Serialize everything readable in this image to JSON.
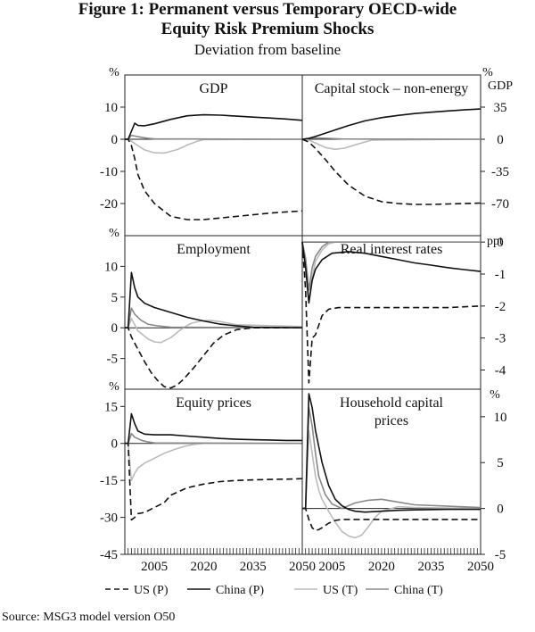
{
  "title_line1": "Figure 1: Permanent versus Temporary OECD-wide",
  "title_line2": "Equity Risk Premium Shocks",
  "subtitle": "Deviation from baseline",
  "source": "Source: MSG3 model version O50",
  "legend": [
    {
      "label": "US (P)",
      "color": "#111111",
      "dash": "7,4",
      "width": 1.6
    },
    {
      "label": "China (P)",
      "color": "#111111",
      "dash": "",
      "width": 1.6
    },
    {
      "label": "US (T)",
      "color": "#bbbbbb",
      "dash": "",
      "width": 1.6
    },
    {
      "label": "China (T)",
      "color": "#888888",
      "dash": "",
      "width": 1.6
    }
  ],
  "x_axis": {
    "range": [
      1996,
      2050
    ],
    "tick_labels": [
      "2005",
      "2020",
      "2035",
      "2050"
    ],
    "tick_values": [
      2005,
      2020,
      2035,
      2050
    ]
  },
  "chart_data": [
    {
      "type": "line",
      "title": "GDP",
      "axis_side": "left",
      "unit": "%",
      "ylim": [
        -30,
        20
      ],
      "yticks": [
        10,
        0,
        -10,
        -20
      ],
      "series": [
        {
          "name": "US (P)",
          "x": [
            1996,
            1997,
            1998,
            1999,
            2000,
            2002,
            2005,
            2010,
            2015,
            2020,
            2025,
            2030,
            2035,
            2040,
            2045,
            2050
          ],
          "y": [
            0,
            0,
            -2,
            -6,
            -11,
            -16,
            -20,
            -24,
            -25,
            -25,
            -24.5,
            -24,
            -23.5,
            -23,
            -22.6,
            -22.3
          ]
        },
        {
          "name": "China (P)",
          "x": [
            1996,
            1997,
            1998,
            1999,
            2000,
            2002,
            2005,
            2010,
            2015,
            2020,
            2025,
            2030,
            2035,
            2040,
            2045,
            2050
          ],
          "y": [
            0,
            0,
            2.5,
            5,
            4.3,
            4.2,
            4.8,
            6.2,
            7.3,
            7.6,
            7.5,
            7.2,
            6.9,
            6.6,
            6.3,
            5.9
          ]
        },
        {
          "name": "US (T)",
          "x": [
            1996,
            1997,
            1998,
            2000,
            2002,
            2005,
            2008,
            2012,
            2015,
            2018,
            2020,
            2050
          ],
          "y": [
            0,
            0,
            -0.6,
            -2,
            -3.3,
            -4.2,
            -4.3,
            -3.2,
            -1.8,
            -0.6,
            -0.1,
            0
          ]
        },
        {
          "name": "China (T)",
          "x": [
            1996,
            1997,
            1998,
            1999,
            2001,
            2003,
            2005,
            2050
          ],
          "y": [
            0,
            0,
            1.2,
            1,
            0.6,
            0.3,
            0.1,
            0
          ]
        }
      ]
    },
    {
      "type": "line",
      "title": "Capital stock – non-energy",
      "axis_side": "right",
      "unit": "%",
      "unit2": "GDP",
      "ylim": [
        -105,
        70
      ],
      "yticks": [
        35,
        0,
        -35,
        -70
      ],
      "series": [
        {
          "name": "US (P)",
          "x": [
            1996,
            1998,
            2000,
            2003,
            2006,
            2010,
            2015,
            2020,
            2025,
            2030,
            2035,
            2040,
            2045,
            2050
          ],
          "y": [
            0,
            -3,
            -10,
            -22,
            -35,
            -50,
            -62,
            -68,
            -70,
            -71,
            -71,
            -70.5,
            -70,
            -69.5
          ]
        },
        {
          "name": "China (P)",
          "x": [
            1996,
            1998,
            2000,
            2005,
            2010,
            2015,
            2020,
            2025,
            2030,
            2035,
            2040,
            2045,
            2050
          ],
          "y": [
            0,
            1,
            3,
            9,
            15,
            20,
            23.5,
            26,
            28,
            29.5,
            30.8,
            32,
            33
          ]
        },
        {
          "name": "US (T)",
          "x": [
            1996,
            1998,
            2000,
            2003,
            2006,
            2009,
            2012,
            2015,
            2017,
            2050
          ],
          "y": [
            0,
            -1,
            -4,
            -9,
            -11,
            -9.5,
            -6,
            -3,
            -1,
            0
          ]
        },
        {
          "name": "China (T)",
          "x": [
            1996,
            1998,
            2000,
            2004,
            2008,
            2050
          ],
          "y": [
            0,
            1,
            1.5,
            1,
            0.3,
            0
          ]
        }
      ]
    },
    {
      "type": "line",
      "title": "Employment",
      "axis_side": "left",
      "unit": "%",
      "ylim": [
        -10,
        15
      ],
      "yticks": [
        10,
        5,
        0,
        -5
      ],
      "series": [
        {
          "name": "US (P)",
          "x": [
            1996,
            1997,
            1998,
            2000,
            2002,
            2004,
            2006,
            2008,
            2010,
            2012,
            2014,
            2017,
            2020,
            2023,
            2026,
            2030,
            2035,
            2050
          ],
          "y": [
            0,
            0,
            -1.5,
            -3.5,
            -5.5,
            -7.3,
            -8.6,
            -9.6,
            -9.8,
            -9.3,
            -8.3,
            -6.5,
            -4.5,
            -2.5,
            -1.2,
            -0.3,
            0,
            0
          ]
        },
        {
          "name": "China (P)",
          "x": [
            1996,
            1997,
            1998,
            1999,
            2000,
            2002,
            2005,
            2010,
            2015,
            2020,
            2025,
            2030,
            2035,
            2050
          ],
          "y": [
            0,
            0,
            9,
            6.5,
            5,
            4,
            3.3,
            2.5,
            1.7,
            1.1,
            0.6,
            0.3,
            0.1,
            0
          ]
        },
        {
          "name": "US (T)",
          "x": [
            1996,
            1997,
            1998,
            2000,
            2003,
            2005,
            2007,
            2010,
            2013,
            2016,
            2019,
            2022,
            2025,
            2030,
            2050
          ],
          "y": [
            0,
            0,
            1.5,
            -0.5,
            -1.8,
            -2.3,
            -2.4,
            -1.6,
            -0.3,
            0.7,
            1.1,
            1.2,
            1,
            0.5,
            0.2
          ]
        },
        {
          "name": "China (T)",
          "x": [
            1996,
            1997,
            1998,
            1999,
            2001,
            2003,
            2006,
            2010,
            2050
          ],
          "y": [
            0,
            0,
            3.2,
            2.2,
            1.2,
            0.6,
            0.3,
            0.1,
            0
          ]
        }
      ]
    },
    {
      "type": "line",
      "title": "Real interest rates",
      "axis_side": "right",
      "unit": "ppt",
      "ylim": [
        -4.6,
        0.2
      ],
      "yticks": [
        0,
        -1,
        -2,
        -3,
        -4
      ],
      "series": [
        {
          "name": "US (P)",
          "x": [
            1996,
            1997,
            1998,
            1999,
            2000,
            2002,
            2004,
            2007,
            2010,
            2015,
            2020,
            2030,
            2040,
            2050
          ],
          "y": [
            0,
            -1.5,
            -4.4,
            -3,
            -2.9,
            -2.3,
            -2.1,
            -2.05,
            -2.05,
            -2.05,
            -2.05,
            -2.05,
            -2.05,
            -2.0
          ]
        },
        {
          "name": "China (P)",
          "x": [
            1996,
            1997,
            1998,
            1999,
            2000,
            2002,
            2005,
            2010,
            2015,
            2020,
            2025,
            2030,
            2035,
            2040,
            2045,
            2050
          ],
          "y": [
            0,
            -0.8,
            -1.9,
            -1.2,
            -0.85,
            -0.55,
            -0.35,
            -0.3,
            -0.35,
            -0.45,
            -0.55,
            -0.65,
            -0.72,
            -0.8,
            -0.86,
            -0.92
          ]
        },
        {
          "name": "US (T)",
          "x": [
            1996,
            1997,
            1998,
            1999,
            2000,
            2002,
            2004,
            2006,
            2008,
            2010,
            2050
          ],
          "y": [
            0,
            -0.6,
            -1.9,
            -1.1,
            -0.6,
            -0.25,
            -0.05,
            0,
            0,
            0,
            0
          ]
        },
        {
          "name": "China (T)",
          "x": [
            1996,
            1997,
            1998,
            1999,
            2000,
            2002,
            2004,
            2050
          ],
          "y": [
            0,
            -0.5,
            -1.5,
            -0.8,
            -0.45,
            -0.15,
            0,
            0
          ]
        }
      ]
    },
    {
      "type": "line",
      "title": "Equity prices",
      "axis_side": "left",
      "unit": "%",
      "ylim": [
        -45,
        22
      ],
      "yticks": [
        15,
        0,
        -15,
        -30,
        -45
      ],
      "series": [
        {
          "name": "US (P)",
          "x": [
            1996,
            1997,
            1998,
            1999,
            2000,
            2002,
            2005,
            2008,
            2010,
            2015,
            2020,
            2025,
            2030,
            2035,
            2040,
            2045,
            2050
          ],
          "y": [
            0,
            0,
            -31,
            -30,
            -28.5,
            -28,
            -26,
            -24,
            -21,
            -18,
            -16.5,
            -15.5,
            -15,
            -14.8,
            -14.6,
            -14.5,
            -14.3
          ]
        },
        {
          "name": "China (P)",
          "x": [
            1996,
            1997,
            1998,
            1999,
            2000,
            2002,
            2005,
            2010,
            2015,
            2020,
            2025,
            2030,
            2035,
            2040,
            2045,
            2050
          ],
          "y": [
            0,
            0,
            12,
            8,
            5,
            3.8,
            3.5,
            3.5,
            3,
            2.5,
            2,
            1.7,
            1.5,
            1.4,
            1.2,
            1.2
          ]
        },
        {
          "name": "US (T)",
          "x": [
            1996,
            1997,
            1998,
            1999,
            2000,
            2002,
            2005,
            2008,
            2011,
            2014,
            2017,
            2020,
            2050
          ],
          "y": [
            0,
            0,
            -15,
            -12,
            -10,
            -8,
            -6,
            -4,
            -2.5,
            -1.2,
            -0.4,
            0,
            0
          ]
        },
        {
          "name": "China (T)",
          "x": [
            1996,
            1997,
            1998,
            1999,
            2001,
            2003,
            2005,
            2050
          ],
          "y": [
            0,
            0,
            4,
            2.5,
            1.3,
            0.6,
            0.2,
            0
          ]
        }
      ]
    },
    {
      "type": "line",
      "title_line1": "Household capital",
      "title_line2": "prices",
      "axis_side": "right",
      "unit": "%",
      "ylim": [
        -5,
        13
      ],
      "yticks": [
        10,
        5,
        0,
        -5
      ],
      "series": [
        {
          "name": "US (P)",
          "x": [
            1996,
            1997,
            1998,
            1999,
            2000,
            2001,
            2002,
            2004,
            2006,
            2008,
            2010,
            2015,
            2020,
            2025,
            2030,
            2040,
            2050
          ],
          "y": [
            0,
            0,
            -1.2,
            -2.1,
            -2.4,
            -2.3,
            -2.1,
            -1.6,
            -1.3,
            -1.2,
            -1.2,
            -1.2,
            -1.2,
            -1.2,
            -1.2,
            -1.2,
            -1.2
          ]
        },
        {
          "name": "China (P)",
          "x": [
            1996,
            1997,
            1998,
            1999,
            2000,
            2002,
            2004,
            2006,
            2008,
            2010,
            2012,
            2015,
            2020,
            2025,
            2030,
            2040,
            2050
          ],
          "y": [
            0,
            0,
            12.5,
            11,
            8.5,
            5,
            2.5,
            1,
            0.3,
            -0.1,
            -0.3,
            -0.4,
            -0.3,
            -0.2,
            -0.15,
            -0.1,
            -0.1
          ]
        },
        {
          "name": "US (T)",
          "x": [
            1996,
            1997,
            1998,
            1999,
            2000,
            2001,
            2002,
            2004,
            2006,
            2008,
            2010,
            2012,
            2014,
            2016,
            2018,
            2020,
            2025,
            2030,
            2050
          ],
          "y": [
            0,
            0,
            8.5,
            6,
            3.5,
            2,
            1,
            -0.3,
            -1.5,
            -2.5,
            -3,
            -3.2,
            -2.9,
            -2,
            -1,
            -0.3,
            0.2,
            0.1,
            0
          ]
        },
        {
          "name": "China (T)",
          "x": [
            1996,
            1997,
            1998,
            1999,
            2000,
            2001,
            2003,
            2005,
            2008,
            2012,
            2016,
            2020,
            2025,
            2030,
            2050
          ],
          "y": [
            0,
            0,
            11,
            9,
            6,
            3.5,
            1.5,
            0.5,
            0,
            0.6,
            0.9,
            1,
            0.7,
            0.4,
            0.1
          ]
        }
      ]
    }
  ]
}
